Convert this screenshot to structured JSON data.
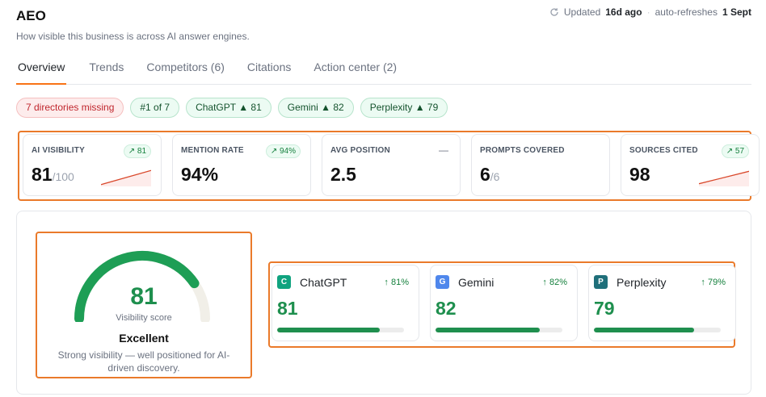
{
  "header": {
    "title": "AEO",
    "subtitle": "How visible this business is across AI answer engines."
  },
  "meta": {
    "updated_label": "Updated",
    "updated_value": "16d ago",
    "refresh_label": "auto-refreshes",
    "refresh_value": "1 Sept",
    "icon": "refresh-icon"
  },
  "tabs": [
    {
      "label": "Overview",
      "active": true
    },
    {
      "label": "Trends"
    },
    {
      "label": "Competitors (6)"
    },
    {
      "label": "Citations"
    },
    {
      "label": "Action center (2)"
    }
  ],
  "chips": [
    {
      "label": "7 directories missing",
      "kind": "warn"
    },
    {
      "label": "#1 of 7"
    },
    {
      "label": "ChatGPT ▲ 81"
    },
    {
      "label": "Gemini ▲ 82"
    },
    {
      "label": "Perplexity ▲ 79"
    }
  ],
  "kpis": [
    {
      "label": "AI VISIBILITY",
      "badge": "↗ 81",
      "value": "81",
      "of": "/100",
      "trend": [
        0.1,
        0.9
      ]
    },
    {
      "label": "MENTION RATE",
      "badge": "↗ 94%",
      "value": "94%"
    },
    {
      "label": "AVG POSITION",
      "dash": "—",
      "value": "2.5"
    },
    {
      "label": "PROMPTS COVERED",
      "value": "6",
      "of": "/6"
    },
    {
      "label": "SOURCES CITED",
      "badge": "↗ 57",
      "value": "98",
      "trend": [
        0.15,
        0.85
      ]
    }
  ],
  "gauge": {
    "value": "81",
    "fraction": 0.81,
    "label": "Visibility score",
    "grade": "Excellent",
    "description": "Strong visibility — well positioned for AI-driven discovery."
  },
  "engines": [
    {
      "name": "ChatGPT",
      "letter": "C",
      "color": "#10a37f",
      "delta": "↑ 81%",
      "score": "81",
      "fraction": 0.81
    },
    {
      "name": "Gemini",
      "letter": "G",
      "color": "#4f87ec",
      "delta": "↑ 82%",
      "score": "82",
      "fraction": 0.82
    },
    {
      "name": "Perplexity",
      "letter": "P",
      "color": "#1f6f7a",
      "delta": "↑ 79%",
      "score": "79",
      "fraction": 0.79
    }
  ],
  "colors": {
    "accent": "#f97316",
    "highlight": "#ea7a2a",
    "success": "#1e8f4e",
    "gauge_track": "#f1efe8"
  }
}
